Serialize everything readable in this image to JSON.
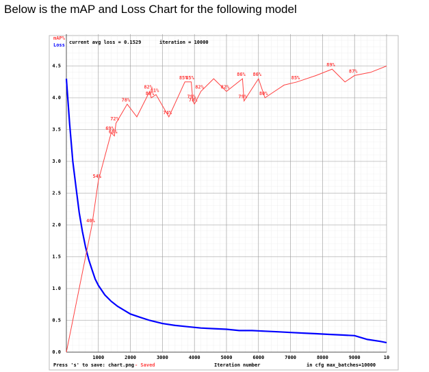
{
  "heading": "Below is the mAP and Loss Chart for the following model",
  "chart_data": {
    "type": "line",
    "x_label": "Iteration number",
    "annotations": [
      "current avg loss = 0.1529",
      "iteration = 10000",
      "Press 's' to save: chart.png",
      "- Saved",
      "in cfg max_batches=10000"
    ],
    "xlim": [
      0,
      10000
    ],
    "xticks": [
      1000,
      2000,
      3000,
      4000,
      5000,
      6000,
      7000,
      8000,
      9000,
      {
        "value": 10000,
        "label": "10"
      }
    ],
    "ylim": [
      0,
      5
    ],
    "yticks": [
      {
        "value": 0,
        "label": "0.0"
      },
      0.5,
      {
        "value": 1,
        "label": "1.0"
      },
      1.5,
      {
        "value": 2,
        "label": "2.0"
      },
      2.5,
      {
        "value": 3,
        "label": "3.0"
      },
      3.5,
      {
        "value": 4,
        "label": "4.0"
      },
      4.5
    ],
    "y2lim": [
      0,
      100
    ],
    "grid": true,
    "series": [
      {
        "name": "Loss",
        "color": "#0000ff",
        "x": [
          0,
          100,
          200,
          300,
          400,
          500,
          600,
          700,
          800,
          900,
          1000,
          1200,
          1400,
          1600,
          1800,
          2000,
          2300,
          2600,
          3000,
          3400,
          3800,
          4200,
          4600,
          5000,
          5400,
          5800,
          6200,
          6600,
          7000,
          7400,
          7800,
          8200,
          8600,
          9000,
          9400,
          9800,
          10000
        ],
        "values": [
          4.3,
          3.6,
          3.0,
          2.6,
          2.2,
          1.9,
          1.65,
          1.45,
          1.3,
          1.15,
          1.05,
          0.9,
          0.8,
          0.72,
          0.66,
          0.6,
          0.55,
          0.5,
          0.45,
          0.42,
          0.4,
          0.38,
          0.37,
          0.36,
          0.34,
          0.34,
          0.33,
          0.32,
          0.31,
          0.3,
          0.29,
          0.28,
          0.27,
          0.26,
          0.2,
          0.17,
          0.15
        ]
      },
      {
        "name": "mAP%",
        "color": "#ff4040",
        "axis": "y2",
        "x": [
          0,
          800,
          1000,
          1400,
          1500,
          1550,
          1900,
          2200,
          2600,
          2650,
          2800,
          3200,
          3700,
          3900,
          3950,
          4000,
          4200,
          4600,
          5000,
          5500,
          5550,
          6000,
          6200,
          6800,
          7200,
          7800,
          8300,
          8700,
          9000,
          9500,
          10000
        ],
        "values": [
          0,
          40,
          54,
          69,
          68,
          72,
          78,
          74,
          82,
          80,
          81,
          74,
          85,
          85,
          79,
          78,
          82,
          86,
          82,
          86,
          79,
          86,
          80,
          84,
          85,
          87,
          89,
          85,
          87,
          88,
          90
        ],
        "value_labels": [
          null,
          "40%",
          "54%",
          "69%",
          "68%",
          "72%",
          "78%",
          null,
          "82%",
          "80%",
          "81%",
          "74%",
          "85%",
          "85%",
          "79%",
          "78%",
          "82%",
          null,
          "82%",
          "86%",
          "79%",
          "86%",
          "80%",
          null,
          "85%",
          null,
          "89%",
          null,
          "87%",
          null,
          null
        ]
      }
    ]
  }
}
